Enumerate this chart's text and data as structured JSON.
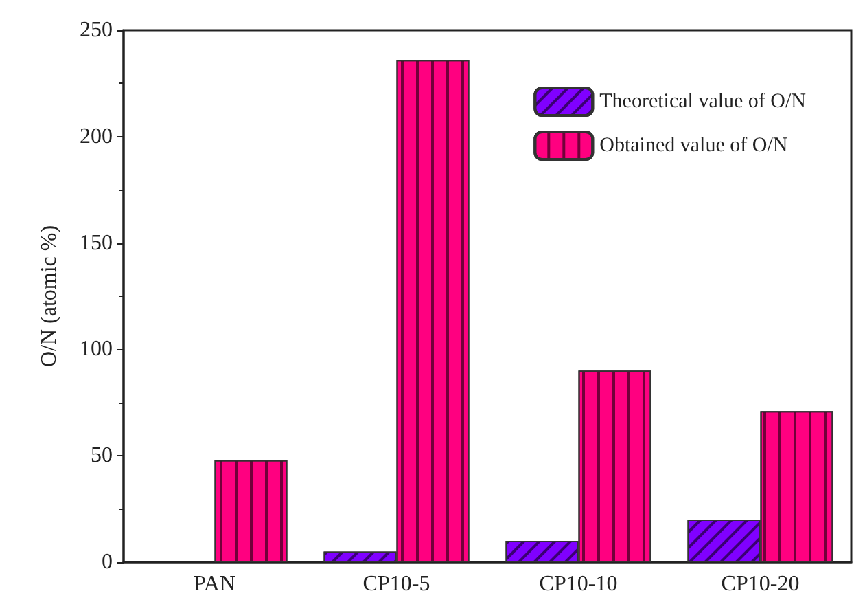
{
  "chart_data": {
    "type": "bar",
    "ylabel": "O/N (atomic %)",
    "categories": [
      "PAN",
      "CP10-5",
      "CP10-10",
      "CP10-20"
    ],
    "series": [
      {
        "name": "Theoretical value of O/N",
        "color": "#8000ff",
        "values": [
          null,
          5,
          10,
          20
        ]
      },
      {
        "name": "Obtained value of O/N",
        "color": "#ff0080",
        "values": [
          48,
          236,
          90,
          71
        ]
      }
    ],
    "ylim": [
      0,
      250
    ],
    "yticks": [
      0,
      50,
      100,
      150,
      200,
      250
    ],
    "grid": false,
    "legend": "top right"
  }
}
